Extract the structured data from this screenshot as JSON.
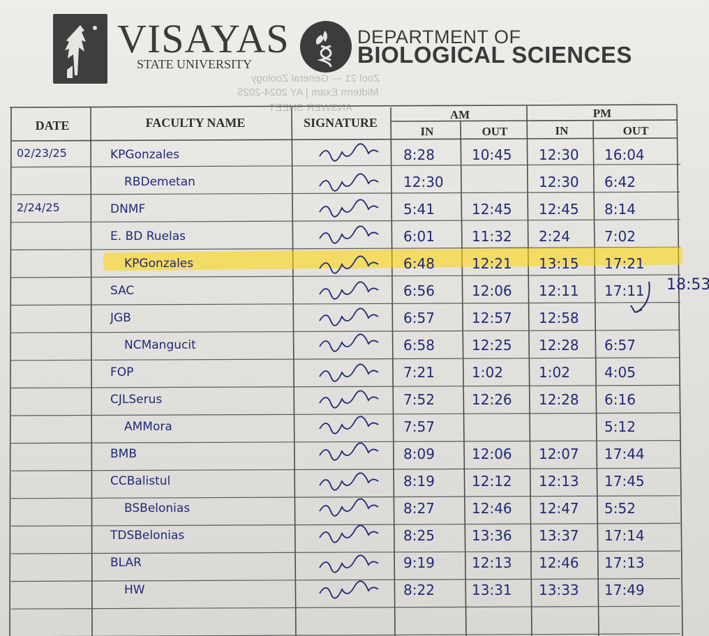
{
  "header": {
    "university_name": "VISAYAS",
    "university_sub": "STATE UNIVERSITY",
    "dept_line1": "DEPARTMENT OF",
    "dept_line2": "BIOLOGICAL SCIENCES"
  },
  "table": {
    "col_date": "DATE",
    "col_faculty": "FACULTY NAME",
    "col_signature": "SIGNATURE",
    "col_am": "AM",
    "col_pm": "PM",
    "col_am_in": "IN",
    "col_am_out": "OUT",
    "col_pm_in": "IN",
    "col_pm_out": "OUT",
    "highlight_color": "#ffd600",
    "ink_color": "#1f2a78",
    "rows": [
      {
        "date": "02/23/25",
        "name": "KPGonzales",
        "am_in": "8:28",
        "am_out": "10:45",
        "pm_in": "12:30",
        "pm_out": "16:04"
      },
      {
        "date": "",
        "name": "RBDemetan",
        "am_in": "12:30",
        "am_out": "",
        "pm_in": "12:30",
        "pm_out": "6:42"
      },
      {
        "date": "2/24/25",
        "name": "DNMF",
        "am_in": "5:41",
        "am_out": "12:45",
        "pm_in": "12:45",
        "pm_out": "8:14"
      },
      {
        "date": "",
        "name": "E. BD Ruelas",
        "am_in": "6:01",
        "am_out": "11:32",
        "pm_in": "2:24",
        "pm_out": "7:02"
      },
      {
        "date": "",
        "name": "KPGonzales",
        "am_in": "6:48",
        "am_out": "12:21",
        "pm_in": "13:15",
        "pm_out": "17:21"
      },
      {
        "date": "",
        "name": "SAC",
        "am_in": "6:56",
        "am_out": "12:06",
        "pm_in": "12:11",
        "pm_out": "17:11"
      },
      {
        "date": "",
        "name": "JGB",
        "am_in": "6:57",
        "am_out": "12:57",
        "pm_in": "12:58",
        "pm_out": ""
      },
      {
        "date": "",
        "name": "NCMangucit",
        "am_in": "6:58",
        "am_out": "12:25",
        "pm_in": "12:28",
        "pm_out": "6:57"
      },
      {
        "date": "",
        "name": "FOP",
        "am_in": "7:21",
        "am_out": "1:02",
        "pm_in": "1:02",
        "pm_out": "4:05"
      },
      {
        "date": "",
        "name": "CJLSerus",
        "am_in": "7:52",
        "am_out": "12:26",
        "pm_in": "12:28",
        "pm_out": "6:16"
      },
      {
        "date": "",
        "name": "AMMora",
        "am_in": "7:57",
        "am_out": "",
        "pm_in": "",
        "pm_out": "5:12"
      },
      {
        "date": "",
        "name": "BMB",
        "am_in": "8:09",
        "am_out": "12:06",
        "pm_in": "12:07",
        "pm_out": "17:44"
      },
      {
        "date": "",
        "name": "CCBalistul",
        "am_in": "8:19",
        "am_out": "12:12",
        "pm_in": "12:13",
        "pm_out": "17:45"
      },
      {
        "date": "",
        "name": "BSBelonias",
        "am_in": "8:27",
        "am_out": "12:46",
        "pm_in": "12:47",
        "pm_out": "5:52"
      },
      {
        "date": "",
        "name": "TDSBelonias",
        "am_in": "8:25",
        "am_out": "13:36",
        "pm_in": "13:37",
        "pm_out": "17:14"
      },
      {
        "date": "",
        "name": "BLAR",
        "am_in": "9:19",
        "am_out": "12:13",
        "pm_in": "12:46",
        "pm_out": "17:13"
      },
      {
        "date": "",
        "name": "HW",
        "am_in": "8:22",
        "am_out": "13:31",
        "pm_in": "13:33",
        "pm_out": "17:49"
      }
    ],
    "margin_note": "18:53"
  }
}
